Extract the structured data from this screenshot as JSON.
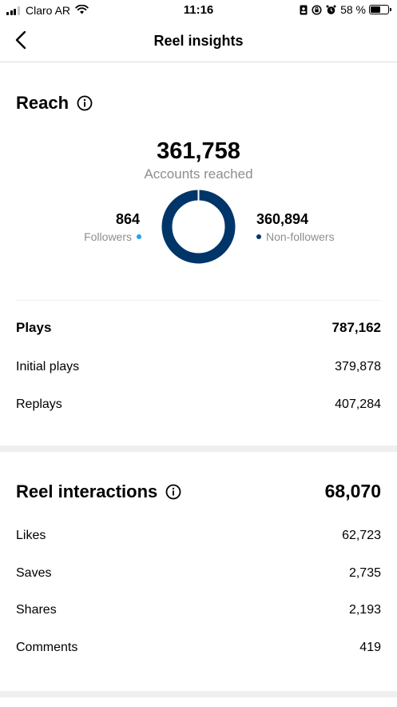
{
  "status_bar": {
    "carrier": "Claro AR",
    "time": "11:16",
    "battery_percent": "58 %",
    "battery_level": 0.58
  },
  "header": {
    "title": "Reel insights"
  },
  "reach": {
    "title": "Reach",
    "total": "361,758",
    "subtitle": "Accounts reached",
    "followers_value": "864",
    "followers_label": "Followers",
    "nonfollowers_value": "360,894",
    "nonfollowers_label": "Non-followers",
    "followers_fraction": 0.0024,
    "colors": {
      "followers": "#1ea1f2",
      "nonfollowers": "#003569"
    }
  },
  "plays": {
    "label": "Plays",
    "value": "787,162",
    "rows": [
      {
        "label": "Initial plays",
        "value": "379,878"
      },
      {
        "label": "Replays",
        "value": "407,284"
      }
    ]
  },
  "interactions": {
    "title": "Reel interactions",
    "total": "68,070",
    "rows": [
      {
        "label": "Likes",
        "value": "62,723"
      },
      {
        "label": "Saves",
        "value": "2,735"
      },
      {
        "label": "Shares",
        "value": "2,193"
      },
      {
        "label": "Comments",
        "value": "419"
      }
    ]
  },
  "icons": {
    "back": "chevron-left-icon",
    "info": "info-icon",
    "wifi": "wifi-icon",
    "battery": "battery-icon"
  }
}
